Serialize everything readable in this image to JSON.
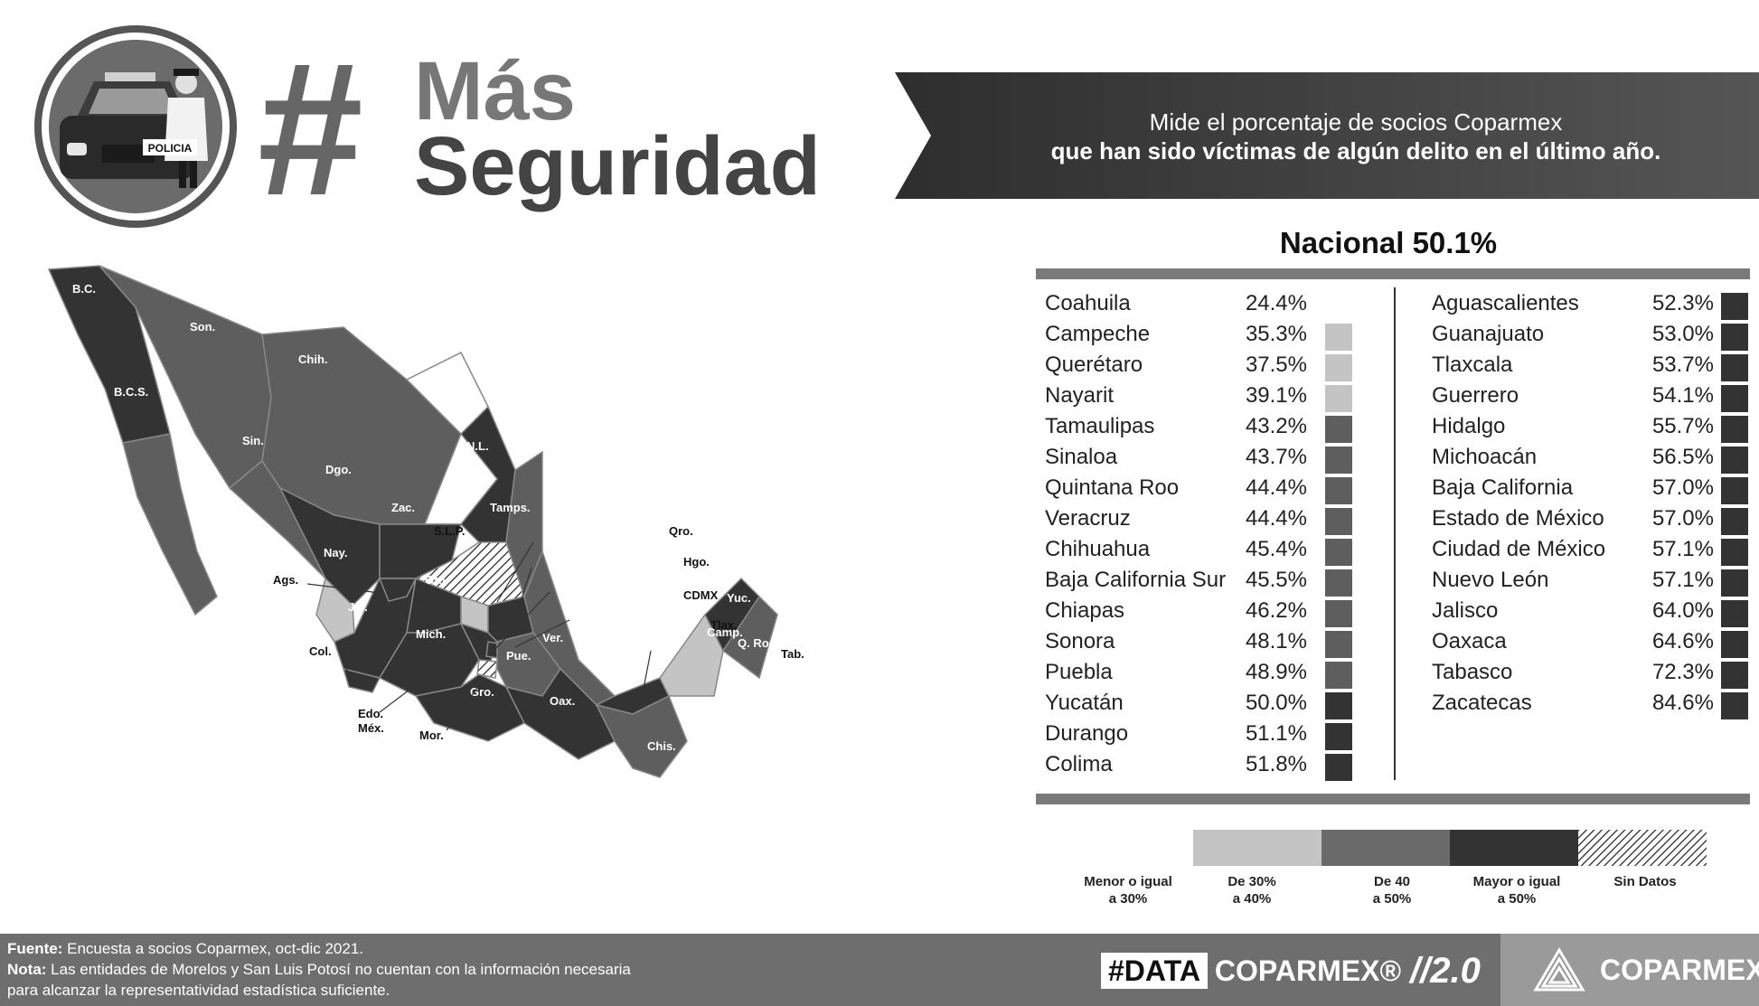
{
  "header": {
    "badge_text": "POLICIA",
    "title_line1": "Más",
    "title_line2": "Seguridad",
    "hash_symbol": "#",
    "banner_line1": "Mide el porcentaje de socios Coparmex",
    "banner_line2": "que han sido víctimas de algún delito en el último año."
  },
  "summary": {
    "nacional_label": "Nacional 50.1%"
  },
  "table": {
    "left": [
      {
        "name": "Coahuila",
        "pct": "24.4%",
        "level": "low"
      },
      {
        "name": "Campeche",
        "pct": "35.3%",
        "level": "mid_low"
      },
      {
        "name": "Querétaro",
        "pct": "37.5%",
        "level": "mid_low"
      },
      {
        "name": "Nayarit",
        "pct": "39.1%",
        "level": "mid_low"
      },
      {
        "name": "Tamaulipas",
        "pct": "43.2%",
        "level": "mid"
      },
      {
        "name": "Sinaloa",
        "pct": "43.7%",
        "level": "mid"
      },
      {
        "name": "Quintana Roo",
        "pct": "44.4%",
        "level": "mid"
      },
      {
        "name": "Veracruz",
        "pct": "44.4%",
        "level": "mid"
      },
      {
        "name": "Chihuahua",
        "pct": "45.4%",
        "level": "mid"
      },
      {
        "name": "Baja California Sur",
        "pct": "45.5%",
        "level": "mid"
      },
      {
        "name": "Chiapas",
        "pct": "46.2%",
        "level": "mid"
      },
      {
        "name": "Sonora",
        "pct": "48.1%",
        "level": "mid"
      },
      {
        "name": "Puebla",
        "pct": "48.9%",
        "level": "mid"
      },
      {
        "name": "Yucatán",
        "pct": "50.0%",
        "level": "high"
      },
      {
        "name": "Durango",
        "pct": "51.1%",
        "level": "high"
      },
      {
        "name": "Colima",
        "pct": "51.8%",
        "level": "high"
      }
    ],
    "right": [
      {
        "name": "Aguascalientes",
        "pct": "52.3%",
        "level": "high"
      },
      {
        "name": "Guanajuato",
        "pct": "53.0%",
        "level": "high"
      },
      {
        "name": "Tlaxcala",
        "pct": "53.7%",
        "level": "high"
      },
      {
        "name": "Guerrero",
        "pct": "54.1%",
        "level": "high"
      },
      {
        "name": "Hidalgo",
        "pct": "55.7%",
        "level": "high"
      },
      {
        "name": "Michoacán",
        "pct": "56.5%",
        "level": "high"
      },
      {
        "name": "Baja California",
        "pct": "57.0%",
        "level": "high"
      },
      {
        "name": "Estado de México",
        "pct": "57.0%",
        "level": "high"
      },
      {
        "name": "Ciudad de México",
        "pct": "57.1%",
        "level": "high"
      },
      {
        "name": "Nuevo León",
        "pct": "57.1%",
        "level": "high"
      },
      {
        "name": "Jalisco",
        "pct": "64.0%",
        "level": "high"
      },
      {
        "name": "Oaxaca",
        "pct": "64.6%",
        "level": "high"
      },
      {
        "name": "Tabasco",
        "pct": "72.3%",
        "level": "high"
      },
      {
        "name": "Zacatecas",
        "pct": "84.6%",
        "level": "high"
      }
    ]
  },
  "legend": {
    "items": [
      {
        "label_1": "Menor o igual",
        "label_2": "a 30%",
        "key": "low"
      },
      {
        "label_1": "De 30%",
        "label_2": "a 40%",
        "key": "mid_low"
      },
      {
        "label_1": "De 40",
        "label_2": "a 50%",
        "key": "mid"
      },
      {
        "label_1": "Mayor o igual",
        "label_2": "a 50%",
        "key": "high"
      },
      {
        "label_1": "Sin Datos",
        "label_2": "",
        "key": "none"
      }
    ]
  },
  "colors": {
    "low": "#ffffff",
    "mid_low": "#c4c4c4",
    "mid": "#5e5e5e",
    "high": "#333333",
    "footer": "#6e6e6e",
    "banner": "#4a4a4a"
  },
  "map_labels": {
    "bc": "B.C.",
    "bcs": "B.C.S.",
    "son": "Son.",
    "chih": "Chih.",
    "sin": "Sin.",
    "dgo": "Dgo.",
    "nl": "N.L.",
    "zac": "Zac.",
    "tamps": "Tamps.",
    "slp": "S.L.P.",
    "nay": "Nay.",
    "ags": "Ags.",
    "qro": "Qro.",
    "hgo": "Hgo.",
    "gto": "Gto.",
    "jal": "Jal.",
    "cdmx": "CDMX",
    "tlax": "Tlax.",
    "col": "Col.",
    "mich": "Mich.",
    "pue": "Pue.",
    "ver": "Ver.",
    "edomex_1": "Edo.",
    "edomex_2": "Méx.",
    "gro": "Gro.",
    "oax": "Oax.",
    "mor": "Mor.",
    "tab": "Tab.",
    "chis": "Chis.",
    "camp": "Camp.",
    "yuc": "Yuc.",
    "qroo": "Q. Roo."
  },
  "footer": {
    "fuente_label": "Fuente:",
    "fuente_text": " Encuesta a socios Coparmex, oct-dic 2021.",
    "nota_label": "Nota:",
    "nota_text": " Las entidades de Morelos y San Luis Potosí no cuentan con la información necesaria",
    "nota_text_2": "para alcanzar la representatividad estadística suficiente.",
    "brand_data": "#DATA",
    "brand_coparmex": "COPARMEX®",
    "brand_version": "//2.0",
    "logo_word": "COPARMEX®"
  }
}
